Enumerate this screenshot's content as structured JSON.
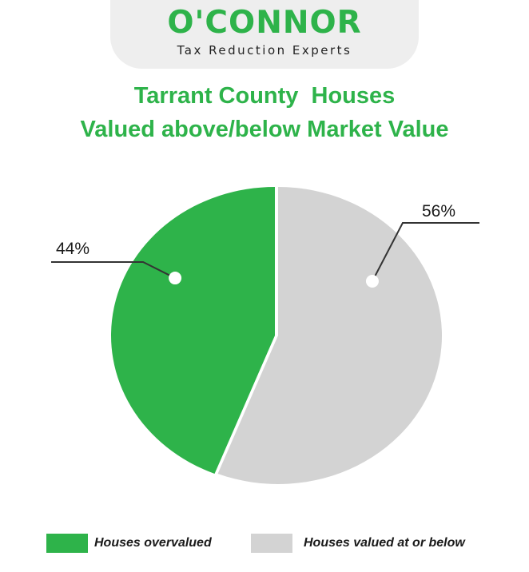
{
  "logo": {
    "wordmark": "O'CONNOR",
    "tagline": "Tax Reduction Experts"
  },
  "chart_data": {
    "type": "pie",
    "title_lines": [
      "Tarrant County  Houses",
      "Valued above/below Market Value"
    ],
    "slices": [
      {
        "label": "Houses overvalued",
        "value": 44,
        "value_label": "44%",
        "color": "#2eb34a"
      },
      {
        "label": "Houses valued at or below",
        "value": 56,
        "value_label": "56%",
        "color": "#d3d3d3"
      }
    ],
    "legend_position": "bottom"
  }
}
